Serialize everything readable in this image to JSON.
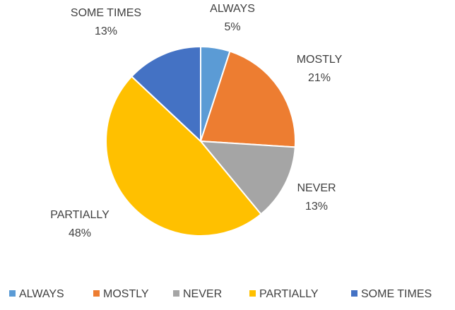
{
  "chart_data": {
    "type": "pie",
    "title": "",
    "categories": [
      "ALWAYS",
      "MOSTLY",
      "NEVER",
      "PARTIALLY",
      "SOME TIMES"
    ],
    "values": [
      5,
      21,
      13,
      48,
      13
    ],
    "value_labels": [
      "5%",
      "21%",
      "13%",
      "48%",
      "13%"
    ],
    "colors": [
      "#5B9BD5",
      "#ED7D31",
      "#A5A5A5",
      "#FFC000",
      "#4472C4"
    ],
    "start_angle": "12 o'clock, clockwise",
    "legend": "bottom",
    "data_labels": "outside, category name and percentage"
  }
}
